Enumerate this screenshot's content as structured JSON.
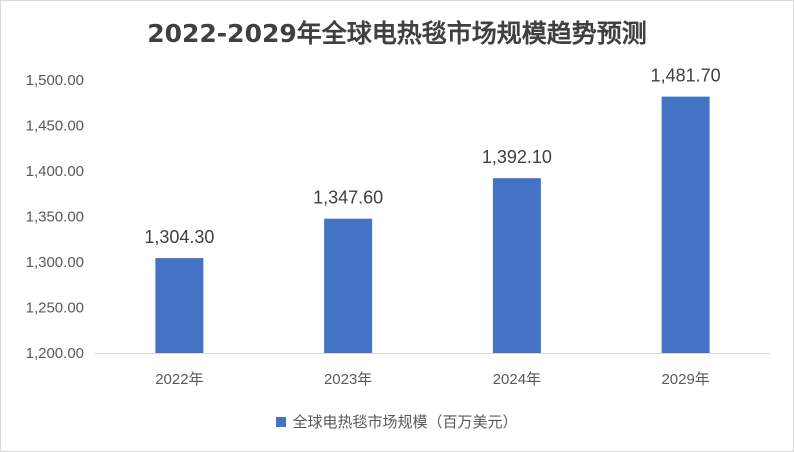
{
  "chart_data": {
    "type": "bar",
    "title": "2022-2029年全球电热毯市场规模趋势预测",
    "categories": [
      "2022年",
      "2023年",
      "2024年",
      "2029年"
    ],
    "series": [
      {
        "name": "全球电热毯市场规模（百万美元）",
        "values": [
          1304.3,
          1347.6,
          1392.1,
          1481.7
        ],
        "data_labels": [
          "1,304.30",
          "1,347.60",
          "1,392.10",
          "1,481.70"
        ],
        "color": "#4472C4"
      }
    ],
    "ylim": [
      1200,
      1500
    ],
    "yticks": [
      1200,
      1250,
      1300,
      1350,
      1400,
      1450,
      1500
    ],
    "ytick_labels": [
      "1,200.00",
      "1,250.00",
      "1,300.00",
      "1,350.00",
      "1,400.00",
      "1,450.00",
      "1,500.00"
    ],
    "grid": false,
    "legend_position": "bottom"
  }
}
